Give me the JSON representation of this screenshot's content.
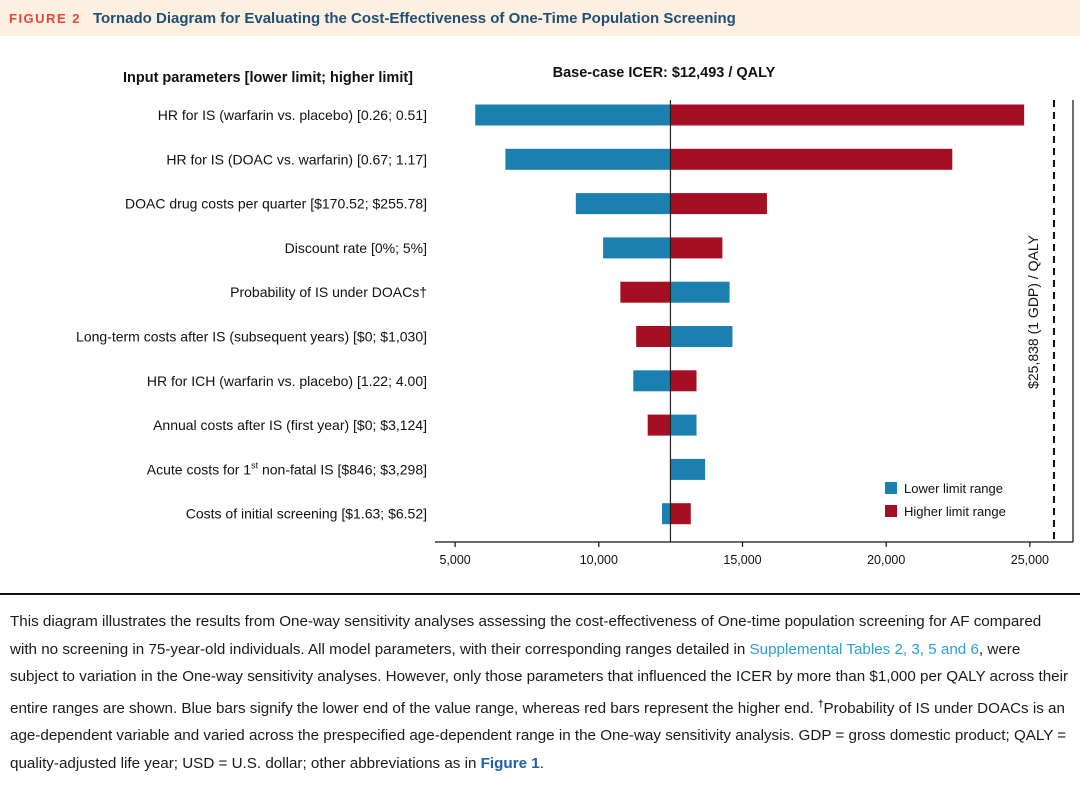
{
  "figure": {
    "label": "FIGURE 2",
    "title": "Tornado Diagram for Evaluating the Cost-Effectiveness of One-Time Population Screening"
  },
  "chart_data": {
    "type": "bar",
    "orientation": "horizontal-tornado",
    "title": "Base-case ICER: $12,493 / QALY",
    "base_value": 12493,
    "ylabel": "Input parameters [lower limit; higher limit]",
    "xlim": [
      4300,
      26500
    ],
    "x_ticks": [
      5000,
      10000,
      15000,
      20000,
      25000
    ],
    "x_tick_labels": [
      "5,000",
      "10,000",
      "15,000",
      "20,000",
      "25,000"
    ],
    "grid": false,
    "legend_position": "bottom-right",
    "threshold": {
      "value": 25838,
      "label": "$25,838 (1 GDP) / QALY"
    },
    "categories": [
      "HR for IS (warfarin vs. placebo) [0.26; 0.51]",
      "HR for IS (DOAC vs. warfarin) [0.67; 1.17]",
      "DOAC drug costs per quarter [$170.52; $255.78]",
      "Discount rate [0%; 5%]",
      "Probability of IS under DOACs†",
      "Long-term costs after IS (subsequent years) [$0; $1,030]",
      "HR for ICH (warfarin vs. placebo) [1.22; 4.00]",
      "Annual costs after IS (first year) [$0; $3,124]",
      "Acute costs for 1st non-fatal IS [$846; $3,298]",
      "Costs of initial screening [$1.63; $6.52]"
    ],
    "series": [
      {
        "name": "Lower limit range",
        "color": "#1b7faf",
        "values": [
          5700,
          6750,
          9200,
          10150,
          14550,
          14650,
          11200,
          13400,
          13700,
          12200
        ]
      },
      {
        "name": "Higher limit range",
        "color": "#a50f24",
        "values": [
          24800,
          22300,
          15850,
          14300,
          10750,
          11300,
          13400,
          11700,
          12493,
          13200
        ]
      }
    ]
  },
  "caption": {
    "p1": "This diagram illustrates the results from One-way sensitivity analyses assessing the cost-effectiveness of One-time population screening for AF compared with no screening in 75-year-old individuals. All model parameters, with their corresponding ranges detailed in ",
    "link1": "Supplemental Tables 2, 3, 5 and 6",
    "p2": ", were subject to variation in the One-way sensitivity analyses. However, only those parameters that influenced the ICER by more than $1,000 per QALY across their entire ranges are shown. Blue bars signify the lower end of the value range, whereas red bars represent the higher end. ",
    "dagger": "†",
    "p3": "Probability of IS under DOACs is an age-dependent variable and varied across the prespecified age-dependent range in the One-way sensitivity analysis. GDP = gross domestic product; QALY = quality-adjusted life year; USD = U.S. dollar; other abbreviations as in ",
    "link2": "Figure 1",
    "p4": "."
  }
}
